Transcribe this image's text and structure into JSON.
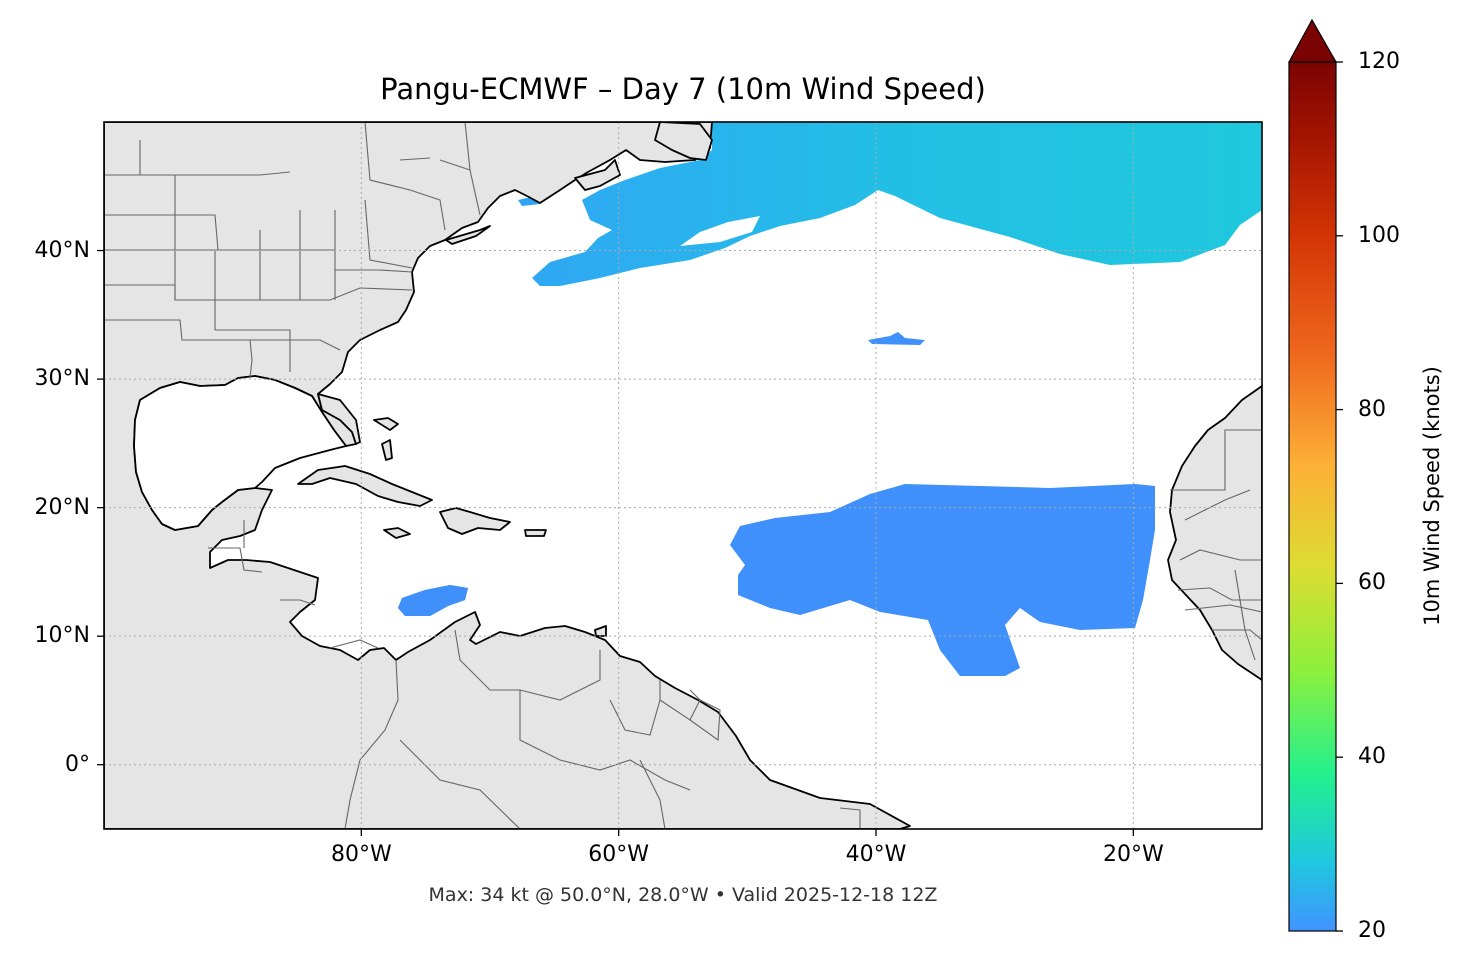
{
  "title": "Pangu-ECMWF – Day 7 (10m Wind Speed)",
  "footnote": "Max: 34 kt @ 50.0°N, 28.0°W • Valid 2025-12-18 12Z",
  "map": {
    "projection": "PlateCarree",
    "extent": {
      "lon_min": -100,
      "lon_max": -10,
      "lat_min": -5,
      "lat_max": 50
    },
    "land_color": "#e5e5e5",
    "coastline_color": "#000000",
    "border_color": "#666666",
    "gridlines": "dotted",
    "lat_ticks": [
      {
        "value": 40,
        "label": "40°N"
      },
      {
        "value": 30,
        "label": "30°N"
      },
      {
        "value": 20,
        "label": "20°N"
      },
      {
        "value": 10,
        "label": "10°N"
      },
      {
        "value": 0,
        "label": "0°"
      }
    ],
    "lon_ticks": [
      {
        "value": -80,
        "label": "80°W"
      },
      {
        "value": -60,
        "label": "60°W"
      },
      {
        "value": -40,
        "label": "40°W"
      },
      {
        "value": -20,
        "label": "20°W"
      }
    ],
    "max_wind": {
      "value_kt": 34,
      "lat": 50.0,
      "lon": -28.0
    }
  },
  "colorbar": {
    "label": "10m Wind Speed (knots)",
    "min": 20,
    "max": 120,
    "extend": "max",
    "ticks": [
      {
        "value": 120,
        "label": "120"
      },
      {
        "value": 100,
        "label": "100"
      },
      {
        "value": 80,
        "label": "80"
      },
      {
        "value": 60,
        "label": "60"
      },
      {
        "value": 40,
        "label": "40"
      },
      {
        "value": 20,
        "label": "20"
      }
    ],
    "stops": [
      {
        "value": 20,
        "color": "#4294ff"
      },
      {
        "value": 28,
        "color": "#1fc8de"
      },
      {
        "value": 38,
        "color": "#23f08e"
      },
      {
        "value": 50,
        "color": "#8df03c"
      },
      {
        "value": 62,
        "color": "#dedc32"
      },
      {
        "value": 74,
        "color": "#fdae36"
      },
      {
        "value": 86,
        "color": "#f06a1e"
      },
      {
        "value": 100,
        "color": "#d23505"
      },
      {
        "value": 112,
        "color": "#a11201"
      },
      {
        "value": 120,
        "color": "#7a0403"
      }
    ]
  }
}
